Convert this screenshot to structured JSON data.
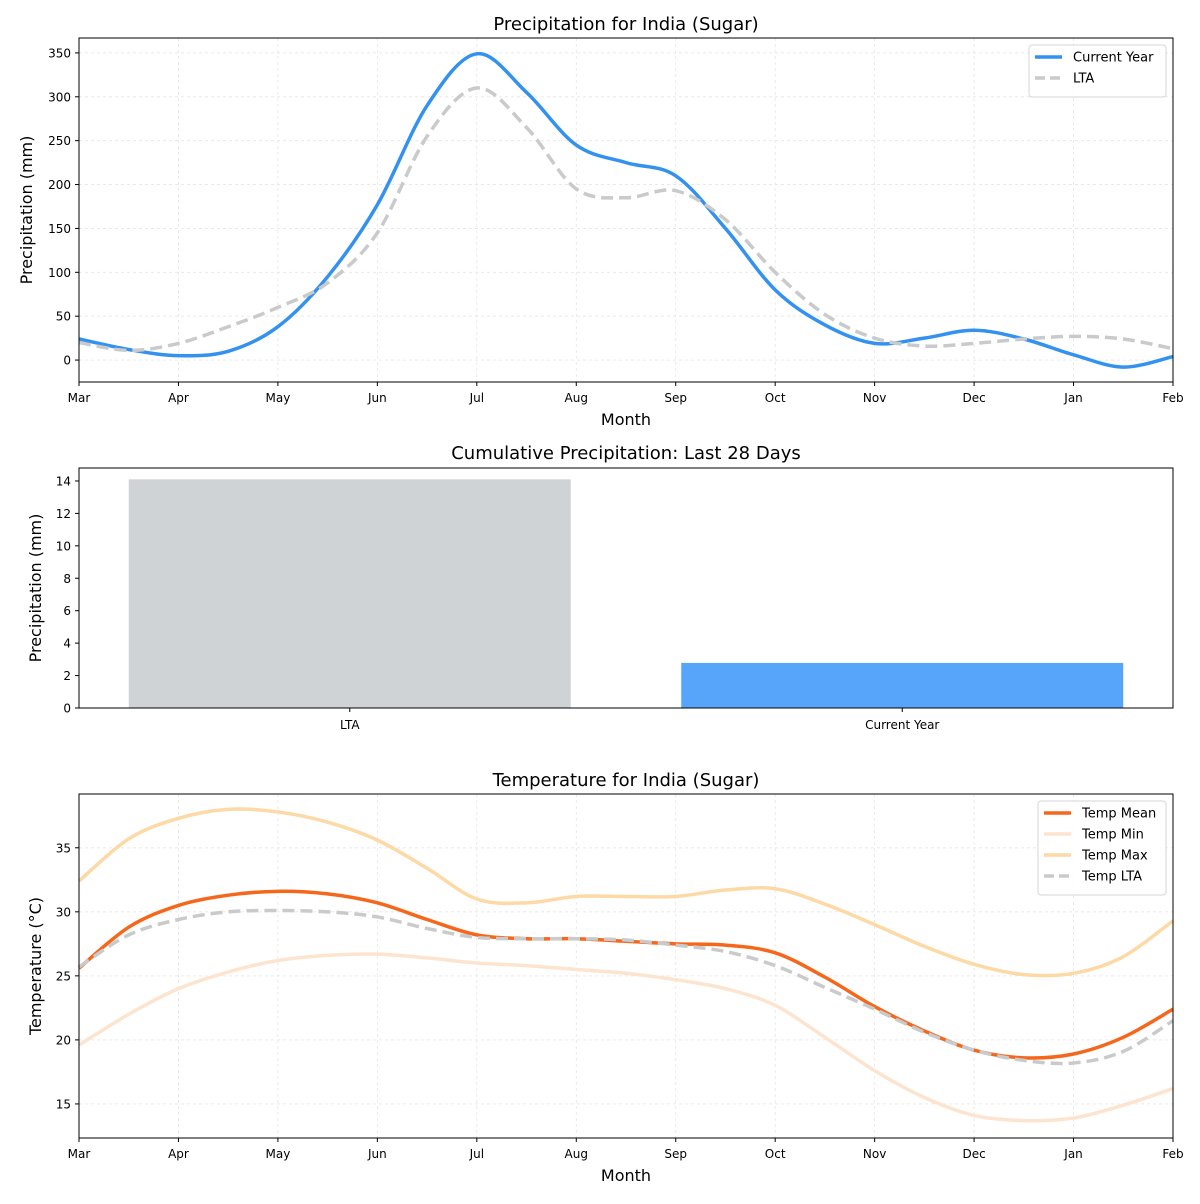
{
  "chart_data": [
    {
      "type": "line",
      "title": "Precipitation for India (Sugar)",
      "xlabel": "Month",
      "ylabel": "Precipitation (mm)",
      "x_ticks": [
        "Mar",
        "Apr",
        "May",
        "Jun",
        "Jul",
        "Aug",
        "Sep",
        "Oct",
        "Nov",
        "Dec",
        "Jan",
        "Feb"
      ],
      "x_months": [
        0,
        0.5,
        1,
        1.5,
        2,
        2.5,
        3,
        3.5,
        4,
        4.5,
        5,
        5.5,
        6,
        6.5,
        7,
        7.5,
        8,
        8.5,
        9,
        9.5,
        10,
        10.5,
        11
      ],
      "xlim": [
        0,
        11
      ],
      "ylim": [
        -25,
        367
      ],
      "y_ticks": [
        0,
        50,
        100,
        150,
        200,
        250,
        300,
        350
      ],
      "grid": true,
      "legend_position": "top-right",
      "series": [
        {
          "name": "Current Year",
          "color": "#3391f0",
          "style": "solid",
          "values": [
            24,
            12,
            5,
            10,
            38,
            95,
            177,
            290,
            349,
            305,
            245,
            225,
            210,
            150,
            80,
            40,
            19,
            25,
            34,
            24,
            6,
            -8,
            4
          ]
        },
        {
          "name": "LTA",
          "color": "#c8cacb",
          "style": "dashed",
          "values": [
            20,
            11,
            19,
            38,
            60,
            88,
            145,
            255,
            310,
            265,
            195,
            185,
            193,
            160,
            100,
            52,
            25,
            16,
            19,
            24,
            27,
            24,
            13
          ]
        }
      ]
    },
    {
      "type": "bar",
      "title": "Cumulative Precipitation: Last 28 Days",
      "xlabel": "",
      "ylabel": "Precipitation (mm)",
      "categories": [
        "LTA",
        "Current Year"
      ],
      "values": [
        14.1,
        2.78
      ],
      "colors": [
        "#d0d3d6",
        "#57a5fa"
      ],
      "ylim": [
        0,
        14.8
      ],
      "y_ticks": [
        0,
        2,
        4,
        6,
        8,
        10,
        12,
        14
      ],
      "grid": false
    },
    {
      "type": "line",
      "title": "Temperature for India (Sugar)",
      "xlabel": "Month",
      "ylabel": "Temperature (°C)",
      "x_ticks": [
        "Mar",
        "Apr",
        "May",
        "Jun",
        "Jul",
        "Aug",
        "Sep",
        "Oct",
        "Nov",
        "Dec",
        "Jan",
        "Feb"
      ],
      "x_months": [
        0,
        0.5,
        1,
        1.5,
        2,
        2.5,
        3,
        3.5,
        4,
        4.5,
        5,
        5.5,
        6,
        6.5,
        7,
        7.5,
        8,
        8.5,
        9,
        9.5,
        10,
        10.5,
        11
      ],
      "xlim": [
        0,
        11
      ],
      "ylim": [
        12.34,
        39.2
      ],
      "y_ticks": [
        15,
        20,
        25,
        30,
        35
      ],
      "grid": true,
      "legend_position": "top-right",
      "series": [
        {
          "name": "Temp Mean",
          "color": "#f5671b",
          "style": "solid",
          "values": [
            25.6,
            28.8,
            30.5,
            31.3,
            31.6,
            31.4,
            30.7,
            29.4,
            28.2,
            27.9,
            27.9,
            27.7,
            27.5,
            27.4,
            26.8,
            24.9,
            22.6,
            20.7,
            19.2,
            18.6,
            18.9,
            20.2,
            22.4
          ]
        },
        {
          "name": "Temp Min",
          "color": "#fde4cf",
          "style": "solid",
          "values": [
            19.6,
            22.0,
            24.0,
            25.3,
            26.2,
            26.6,
            26.7,
            26.4,
            26.0,
            25.8,
            25.5,
            25.2,
            24.7,
            24.0,
            22.7,
            20.2,
            17.6,
            15.5,
            14.1,
            13.7,
            13.9,
            14.9,
            16.2
          ]
        },
        {
          "name": "Temp Max",
          "color": "#fcd9a5",
          "style": "solid",
          "values": [
            32.4,
            35.7,
            37.3,
            38.0,
            37.8,
            37.0,
            35.6,
            33.4,
            31.0,
            30.7,
            31.2,
            31.2,
            31.2,
            31.7,
            31.8,
            30.6,
            29.0,
            27.3,
            25.9,
            25.1,
            25.2,
            26.5,
            29.3
          ]
        },
        {
          "name": "Temp LTA",
          "color": "#c8cacb",
          "style": "dashed",
          "values": [
            25.7,
            28.2,
            29.4,
            30.0,
            30.1,
            30.0,
            29.6,
            28.7,
            28.0,
            27.9,
            27.9,
            27.8,
            27.4,
            26.9,
            25.8,
            24.1,
            22.4,
            20.6,
            19.2,
            18.4,
            18.2,
            19.1,
            21.5
          ]
        }
      ]
    }
  ]
}
